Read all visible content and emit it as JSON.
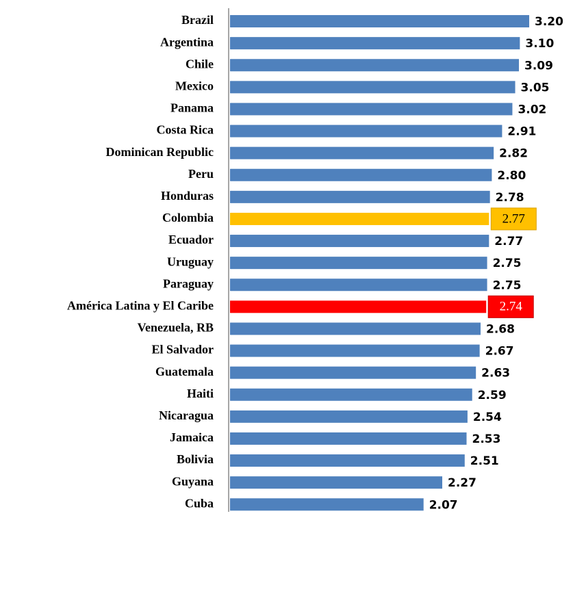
{
  "chart_data": {
    "type": "hbar",
    "categories": [
      "Brazil",
      "Argentina",
      "Chile",
      "Mexico",
      "Panama",
      "Costa Rica",
      "Dominican Republic",
      "Peru",
      "Honduras",
      "Colombia",
      "Ecuador",
      "Uruguay",
      "Paraguay",
      "América Latina y El Caribe",
      "Venezuela, RB",
      "El Salvador",
      "Guatemala",
      "Haiti",
      "Nicaragua",
      "Jamaica",
      "Bolivia",
      "Guyana",
      "Cuba"
    ],
    "values": [
      3.2,
      3.1,
      3.09,
      3.05,
      3.02,
      2.91,
      2.82,
      2.8,
      2.78,
      2.77,
      2.77,
      2.75,
      2.75,
      2.74,
      2.68,
      2.67,
      2.63,
      2.59,
      2.54,
      2.53,
      2.51,
      2.27,
      2.07
    ],
    "value_labels": [
      "3.20",
      "3.10",
      "3.09",
      "3.05",
      "3.02",
      "2.91",
      "2.82",
      "2.80",
      "2.78",
      "2.77",
      "2.77",
      "2.75",
      "2.75",
      "2.74",
      "2.68",
      "2.67",
      "2.63",
      "2.59",
      "2.54",
      "2.53",
      "2.51",
      "2.27",
      "2.07"
    ],
    "color": "#4f81bd",
    "colors": [
      "#4f81bd",
      "#4f81bd",
      "#4f81bd",
      "#4f81bd",
      "#4f81bd",
      "#4f81bd",
      "#4f81bd",
      "#4f81bd",
      "#4f81bd",
      "#ffc000",
      "#4f81bd",
      "#4f81bd",
      "#4f81bd",
      "#ff0000",
      "#4f81bd",
      "#4f81bd",
      "#4f81bd",
      "#4f81bd",
      "#4f81bd",
      "#4f81bd",
      "#4f81bd",
      "#4f81bd",
      "#4f81bd"
    ],
    "xlim": [
      0,
      3.5
    ]
  }
}
